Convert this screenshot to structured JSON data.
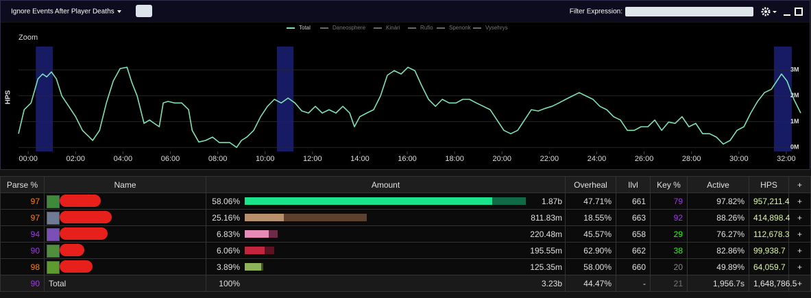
{
  "toolbar": {
    "filter_mode": "Ignore Events After Player Deaths",
    "filter_label": "Filter Expression:"
  },
  "chart_data": {
    "type": "line",
    "zoom_label": "Zoom",
    "ylabel": "HPS",
    "series": [
      {
        "name": "Total",
        "color": "#7de3b2",
        "values": [
          0.53,
          1.46,
          1.72,
          2.65,
          2.84,
          2.73,
          2.92,
          2.65,
          1.99,
          1.59,
          1.19,
          0.66,
          0.27,
          0.66,
          1.72,
          2.57,
          3.05,
          3.1,
          2.52,
          1.99,
          0.93,
          1.06,
          0.93,
          0.8,
          1.72,
          1.78,
          1.72,
          1.72,
          1.46,
          0.66,
          0.21,
          0.27,
          0.4,
          0.19,
          0.19,
          0.0,
          0.27,
          0.4,
          0.66,
          1.19,
          1.59,
          1.86,
          1.72,
          1.91,
          1.72,
          1.41,
          1.33,
          1.59,
          1.33,
          1.46,
          1.33,
          1.59,
          1.33,
          0.8,
          1.19,
          1.33,
          1.46,
          1.99,
          2.79,
          2.97,
          2.84,
          3.1,
          2.97,
          2.39,
          1.86,
          1.59,
          1.86,
          1.72,
          1.72,
          1.86,
          1.86,
          1.72,
          1.59,
          1.46,
          1.06,
          0.66,
          0.53,
          0.66,
          1.06,
          1.46,
          1.41,
          1.51,
          1.59,
          1.72,
          1.86,
          1.99,
          2.12,
          1.99,
          1.86,
          1.59,
          1.46,
          1.19,
          1.06,
          0.66,
          0.66,
          0.8,
          0.8,
          1.06,
          0.66,
          0.98,
          0.93,
          1.19,
          0.8,
          0.93,
          0.53,
          0.53,
          0.4,
          0.13,
          0.27,
          0.66,
          0.8,
          1.33,
          1.78,
          2.12,
          2.25,
          2.65,
          2.84,
          2.57,
          1.86,
          1.33
        ]
      },
      {
        "name": "Daneosphere",
        "color": "#6a6a6a"
      },
      {
        "name": "Kinàri",
        "color": "#6a6a6a"
      },
      {
        "name": "Rufio",
        "color": "#6a6a6a"
      },
      {
        "name": "Spenonk",
        "color": "#6a6a6a"
      },
      {
        "name": "Vysehrys",
        "color": "#6a6a6a"
      }
    ],
    "x": [
      -0.41,
      -0.17,
      0.12,
      0.41,
      0.61,
      0.78,
      0.98,
      1.19,
      1.42,
      1.71,
      2.0,
      2.29,
      2.72,
      3.01,
      3.3,
      3.59,
      3.88,
      4.17,
      4.37,
      4.6,
      4.89,
      5.12,
      5.32,
      5.53,
      5.7,
      5.9,
      6.19,
      6.48,
      6.77,
      6.92,
      7.2,
      7.49,
      7.78,
      8.07,
      8.51,
      8.8,
      9.0,
      9.23,
      9.52,
      9.81,
      10.1,
      10.39,
      10.68,
      10.97,
      11.26,
      11.55,
      11.83,
      12.12,
      12.41,
      12.7,
      12.99,
      13.28,
      13.57,
      13.77,
      14.0,
      14.29,
      14.58,
      14.87,
      15.16,
      15.45,
      15.74,
      16.03,
      16.32,
      16.61,
      16.9,
      17.19,
      17.48,
      17.77,
      18.06,
      18.34,
      18.63,
      18.92,
      19.21,
      19.5,
      19.79,
      20.08,
      20.37,
      20.66,
      20.95,
      21.24,
      21.53,
      21.82,
      22.11,
      22.4,
      22.69,
      22.97,
      23.26,
      23.55,
      23.84,
      24.13,
      24.42,
      24.71,
      25.0,
      25.29,
      25.58,
      25.87,
      26.16,
      26.45,
      26.74,
      27.03,
      27.31,
      27.6,
      27.89,
      28.18,
      28.47,
      28.76,
      29.05,
      29.34,
      29.63,
      29.92,
      30.21,
      30.5,
      30.79,
      31.08,
      31.37,
      31.66,
      31.8,
      32.03,
      32.32,
      32.61
    ],
    "highlight_ranges": [
      [
        0.32,
        1.04
      ],
      [
        10.5,
        11.2
      ],
      [
        31.48,
        32.23
      ]
    ],
    "highlight_color": "#161b63",
    "xlim": [
      -0.41,
      32.61
    ],
    "ylim": [
      -0.1,
      3.9
    ],
    "xticks": [
      {
        "value": 0,
        "label": "00:00"
      },
      {
        "value": 2,
        "label": "02:00"
      },
      {
        "value": 4,
        "label": "04:00"
      },
      {
        "value": 6,
        "label": "06:00"
      },
      {
        "value": 8,
        "label": "08:00"
      },
      {
        "value": 10,
        "label": "10:00"
      },
      {
        "value": 12,
        "label": "12:00"
      },
      {
        "value": 14,
        "label": "14:00"
      },
      {
        "value": 16,
        "label": "16:00"
      },
      {
        "value": 18,
        "label": "18:00"
      },
      {
        "value": 20,
        "label": "20:00"
      },
      {
        "value": 22,
        "label": "22:00"
      },
      {
        "value": 24,
        "label": "24:00"
      },
      {
        "value": 26,
        "label": "26:00"
      },
      {
        "value": 28,
        "label": "28:00"
      },
      {
        "value": 30,
        "label": "30:00"
      },
      {
        "value": 32,
        "label": "32:00"
      }
    ],
    "yticks": [
      {
        "value": 0,
        "label": "0M"
      },
      {
        "value": 1,
        "label": "1M"
      },
      {
        "value": 2,
        "label": "2M"
      },
      {
        "value": 3,
        "label": "3M"
      }
    ],
    "grid": true
  },
  "table": {
    "columns": [
      "Parse %",
      "Name",
      "Amount",
      "Overheal",
      "Ilvl",
      "Key %",
      "Active",
      "HPS",
      "+"
    ],
    "row_action": "+",
    "rows": [
      {
        "parse": "97",
        "parse_color": "#ff8000",
        "icon_color": "#3f8a3a",
        "amount_percent": "58.06%",
        "amount": "1.87b",
        "overheal": "47.71%",
        "ilvl": "661",
        "key": "79",
        "key_color": "#a335ee",
        "active": "97.82%",
        "hps": "957,211.4",
        "hps_color": "#d9f7a3",
        "bar": {
          "value": 58.06,
          "primary_fraction": 0.88,
          "color": "#1be38c",
          "dark_color": "#0f6a45"
        }
      },
      {
        "parse": "97",
        "parse_color": "#ff8000",
        "icon_color": "#6d7b95",
        "amount_percent": "25.16%",
        "amount": "811.83m",
        "overheal": "18.55%",
        "ilvl": "663",
        "key": "92",
        "key_color": "#a335ee",
        "active": "88.26%",
        "hps": "414,898.4",
        "hps_color": "#d9f7a3",
        "bar": {
          "value": 25.16,
          "primary_fraction": 0.32,
          "color": "#b8906b",
          "dark_color": "#5b412e"
        }
      },
      {
        "parse": "94",
        "parse_color": "#a335ee",
        "icon_color": "#7b4fb8",
        "amount_percent": "6.83%",
        "amount": "220.48m",
        "overheal": "45.57%",
        "ilvl": "658",
        "key": "29",
        "key_color": "#1eff00",
        "active": "76.27%",
        "hps": "112,678.3",
        "hps_color": "#d9f7a3",
        "bar": {
          "value": 6.83,
          "primary_fraction": 0.73,
          "color": "#e58bb5",
          "dark_color": "#6d2b47"
        }
      },
      {
        "parse": "90",
        "parse_color": "#a335ee",
        "icon_color": "#4f8f3c",
        "amount_percent": "6.06%",
        "amount": "195.55m",
        "overheal": "62.90%",
        "ilvl": "662",
        "key": "38",
        "key_color": "#1eff00",
        "active": "82.86%",
        "hps": "99,938.7",
        "hps_color": "#d9f7a3",
        "bar": {
          "value": 6.06,
          "primary_fraction": 0.67,
          "color": "#c4243d",
          "dark_color": "#5a1421"
        }
      },
      {
        "parse": "98",
        "parse_color": "#ff8000",
        "icon_color": "#5b9b2f",
        "amount_percent": "3.89%",
        "amount": "125.35m",
        "overheal": "58.00%",
        "ilvl": "660",
        "key": "20",
        "key_color": "#8a8a8a",
        "active": "49.89%",
        "hps": "64,059.7",
        "hps_color": "#d9f7a3",
        "bar": {
          "value": 3.89,
          "primary_fraction": 0.89,
          "color": "#8fb35a",
          "dark_color": "#3d4d25"
        }
      }
    ],
    "total": {
      "parse": "90",
      "parse_color": "#a335ee",
      "name": "Total",
      "amount_percent": "100%",
      "amount": "3.23b",
      "overheal": "44.47%",
      "ilvl": "-",
      "key": "21",
      "key_color": "#777777",
      "active": "1,956.7s",
      "hps": "1,648,786.5",
      "hps_color": "#e6e6e6"
    }
  }
}
